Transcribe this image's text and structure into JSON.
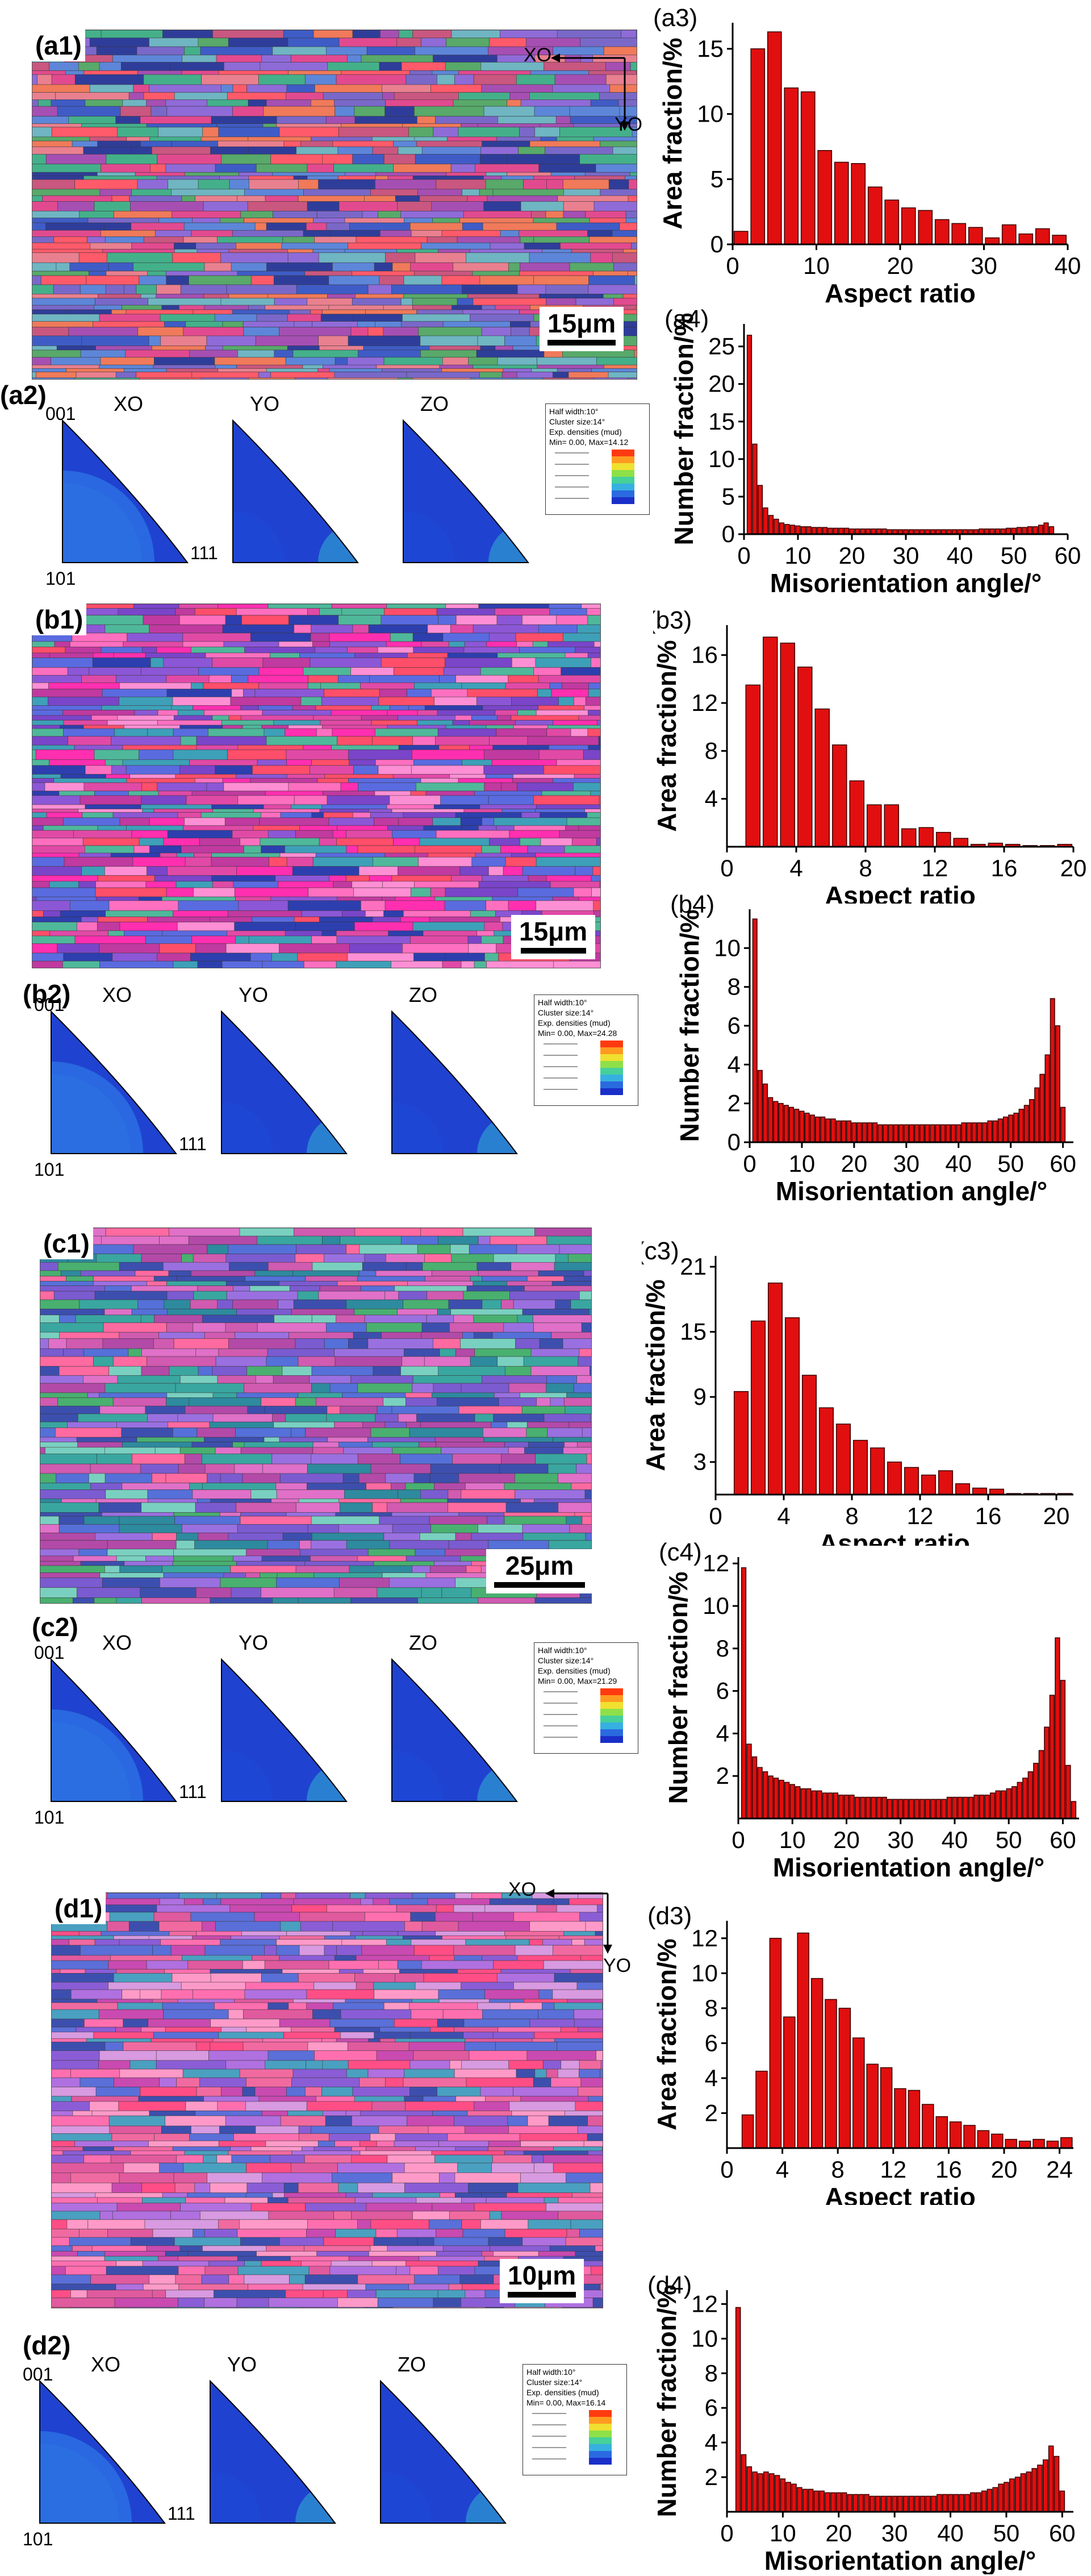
{
  "panels": {
    "a1": "(a1)",
    "a2": "(a2)",
    "b1": "(b1)",
    "b2": "(b2)",
    "c1": "(c1)",
    "c2": "(c2)",
    "d1": "(d1)",
    "d2": "(d2)"
  },
  "scalebars": {
    "a": "15μm",
    "b": "15μm",
    "c": "25μm",
    "d": "10μm"
  },
  "directions": {
    "xo": "XO",
    "yo": "YO",
    "zo": "ZO"
  },
  "poles": {
    "p001": "001",
    "p101": "101",
    "p111": "111"
  },
  "legends": {
    "a": {
      "l1": "Half width:10°",
      "l2": "Cluster size:14°",
      "l3": "Exp. densities (mud)",
      "l4": "Min= 0.00, Max=14.12"
    },
    "b": {
      "l1": "Half width:10°",
      "l2": "Cluster size:14°",
      "l3": "Exp. densities (mud)",
      "l4": "Min= 0.00, Max=24.28"
    },
    "c": {
      "l1": "Half width:10°",
      "l2": "Cluster size:14°",
      "l3": "Exp. densities (mud)",
      "l4": "Min= 0.00, Max=21.29"
    },
    "d": {
      "l1": "Half width:10°",
      "l2": "Cluster size:14°",
      "l3": "Exp. densities (mud)",
      "l4": "Min= 0.00, Max=16.14"
    }
  },
  "chart_data": [
    {
      "id": "a3",
      "panel": "(a3)",
      "type": "bar",
      "xlabel": "Aspect ratio",
      "ylabel": "Area fraction/%",
      "xlim": [
        0,
        40
      ],
      "ylim": [
        0,
        17
      ],
      "xticks": [
        0,
        10,
        20,
        30,
        40
      ],
      "yticks": [
        0,
        5,
        10,
        15
      ],
      "binwidth": 2,
      "x": [
        1,
        3,
        5,
        7,
        9,
        11,
        13,
        15,
        17,
        19,
        21,
        23,
        25,
        27,
        29,
        31,
        33,
        35,
        37,
        39
      ],
      "values": [
        1.0,
        15.0,
        16.3,
        12.0,
        11.7,
        7.2,
        6.3,
        6.2,
        4.4,
        3.4,
        2.8,
        2.6,
        1.9,
        1.6,
        1.3,
        0.5,
        1.5,
        0.8,
        1.2,
        0.7
      ]
    },
    {
      "id": "a4",
      "panel": "(a4)",
      "type": "bar",
      "xlabel": "Misorientation angle/°",
      "ylabel": "Number fraction/%",
      "xlim": [
        0,
        60
      ],
      "ylim": [
        0,
        28
      ],
      "xticks": [
        0,
        10,
        20,
        30,
        40,
        50,
        60
      ],
      "yticks": [
        0,
        5,
        10,
        15,
        20,
        25
      ],
      "binwidth": 1,
      "x": [
        1,
        2,
        3,
        4,
        5,
        6,
        7,
        8,
        9,
        10,
        11,
        12,
        13,
        14,
        15,
        16,
        17,
        18,
        19,
        20,
        21,
        22,
        23,
        24,
        25,
        26,
        27,
        28,
        29,
        30,
        31,
        32,
        33,
        34,
        35,
        36,
        37,
        38,
        39,
        40,
        41,
        42,
        43,
        44,
        45,
        46,
        47,
        48,
        49,
        50,
        51,
        52,
        53,
        54,
        55,
        56,
        57
      ],
      "values": [
        26.5,
        12.0,
        6.5,
        3.5,
        2.5,
        2.0,
        1.5,
        1.3,
        1.2,
        1.1,
        1.0,
        1.0,
        0.9,
        0.9,
        0.9,
        0.8,
        0.8,
        0.8,
        0.8,
        0.7,
        0.7,
        0.7,
        0.7,
        0.7,
        0.7,
        0.7,
        0.6,
        0.6,
        0.6,
        0.6,
        0.6,
        0.6,
        0.6,
        0.6,
        0.6,
        0.6,
        0.6,
        0.6,
        0.6,
        0.6,
        0.6,
        0.6,
        0.6,
        0.7,
        0.7,
        0.7,
        0.7,
        0.7,
        0.8,
        0.8,
        0.9,
        0.9,
        1.0,
        1.0,
        1.2,
        1.5,
        1.0
      ]
    },
    {
      "id": "b3",
      "panel": "(b3)",
      "type": "bar",
      "xlabel": "Aspect ratio",
      "ylabel": "Area fraction/%",
      "xlim": [
        0,
        20
      ],
      "ylim": [
        0,
        18.5
      ],
      "xticks": [
        0,
        4,
        8,
        12,
        16,
        20
      ],
      "yticks": [
        4,
        8,
        12,
        16
      ],
      "binwidth": 1,
      "x": [
        1.5,
        2.5,
        3.5,
        4.5,
        5.5,
        6.5,
        7.5,
        8.5,
        9.5,
        10.5,
        11.5,
        12.5,
        13.5,
        14.5,
        15.5,
        16.5,
        17.5,
        18.5,
        19.5
      ],
      "values": [
        13.5,
        17.5,
        17.0,
        15.0,
        11.5,
        8.5,
        5.5,
        3.5,
        3.5,
        1.5,
        1.6,
        1.2,
        0.7,
        0.2,
        0.3,
        0.2,
        0.1,
        0.1,
        0.2
      ]
    },
    {
      "id": "b4",
      "panel": "(b4)",
      "type": "bar",
      "xlabel": "Misorientation angle/°",
      "ylabel": "Number fraction/%",
      "xlim": [
        0,
        62
      ],
      "ylim": [
        0,
        12
      ],
      "xticks": [
        0,
        10,
        20,
        30,
        40,
        50,
        60
      ],
      "yticks": [
        0,
        2,
        4,
        6,
        8,
        10
      ],
      "binwidth": 1,
      "x": [
        1,
        2,
        3,
        4,
        5,
        6,
        7,
        8,
        9,
        10,
        11,
        12,
        13,
        14,
        15,
        16,
        17,
        18,
        19,
        20,
        21,
        22,
        23,
        24,
        25,
        26,
        27,
        28,
        29,
        30,
        31,
        32,
        33,
        34,
        35,
        36,
        37,
        38,
        39,
        40,
        41,
        42,
        43,
        44,
        45,
        46,
        47,
        48,
        49,
        50,
        51,
        52,
        53,
        54,
        55,
        56,
        57,
        58,
        59,
        60
      ],
      "values": [
        11.5,
        3.7,
        3.0,
        2.3,
        2.1,
        2.0,
        1.9,
        1.8,
        1.7,
        1.6,
        1.5,
        1.4,
        1.3,
        1.3,
        1.2,
        1.2,
        1.1,
        1.1,
        1.1,
        1.0,
        1.0,
        1.0,
        1.0,
        1.0,
        0.9,
        0.9,
        0.9,
        0.9,
        0.9,
        0.9,
        0.9,
        0.9,
        0.9,
        0.9,
        0.9,
        0.9,
        0.9,
        0.9,
        0.9,
        0.9,
        1.0,
        1.0,
        1.0,
        1.0,
        1.0,
        1.1,
        1.1,
        1.2,
        1.3,
        1.4,
        1.5,
        1.7,
        1.9,
        2.2,
        2.8,
        3.5,
        4.5,
        7.4,
        6.0,
        1.8
      ]
    },
    {
      "id": "c3",
      "panel": "(c3)",
      "type": "bar",
      "xlabel": "Aspect ratio",
      "ylabel": "Area fraction/%",
      "xlim": [
        0,
        21
      ],
      "ylim": [
        0,
        22
      ],
      "xticks": [
        0,
        4,
        8,
        12,
        16,
        20
      ],
      "yticks": [
        3,
        9,
        15,
        21
      ],
      "binwidth": 1,
      "x": [
        1.5,
        2.5,
        3.5,
        4.5,
        5.5,
        6.5,
        7.5,
        8.5,
        9.5,
        10.5,
        11.5,
        12.5,
        13.5,
        14.5,
        15.5,
        16.5,
        17.5,
        18.5,
        19.5,
        20.5
      ],
      "values": [
        9.5,
        16.0,
        19.5,
        16.3,
        11.0,
        8.0,
        6.5,
        5.0,
        4.3,
        3.0,
        2.5,
        1.8,
        2.2,
        1.0,
        0.6,
        0.5,
        0.1,
        0.1,
        0.1,
        0.1
      ]
    },
    {
      "id": "c4",
      "panel": "(c4)",
      "type": "bar",
      "xlabel": "Misorientation angle/°",
      "ylabel": "Number fraction/%",
      "xlim": [
        0,
        63
      ],
      "ylim": [
        0,
        12.3
      ],
      "xticks": [
        0,
        10,
        20,
        30,
        40,
        50,
        60
      ],
      "yticks": [
        2,
        4,
        6,
        8,
        10,
        12
      ],
      "binwidth": 1,
      "x": [
        1,
        2,
        3,
        4,
        5,
        6,
        7,
        8,
        9,
        10,
        11,
        12,
        13,
        14,
        15,
        16,
        17,
        18,
        19,
        20,
        21,
        22,
        23,
        24,
        25,
        26,
        27,
        28,
        29,
        30,
        31,
        32,
        33,
        34,
        35,
        36,
        37,
        38,
        39,
        40,
        41,
        42,
        43,
        44,
        45,
        46,
        47,
        48,
        49,
        50,
        51,
        52,
        53,
        54,
        55,
        56,
        57,
        58,
        59,
        60,
        61,
        62
      ],
      "values": [
        11.8,
        3.5,
        2.9,
        2.4,
        2.2,
        2.0,
        1.9,
        1.8,
        1.7,
        1.6,
        1.5,
        1.4,
        1.4,
        1.3,
        1.3,
        1.2,
        1.2,
        1.2,
        1.1,
        1.1,
        1.1,
        1.0,
        1.0,
        1.0,
        1.0,
        1.0,
        1.0,
        0.9,
        0.9,
        0.9,
        0.9,
        0.9,
        0.9,
        0.9,
        0.9,
        0.9,
        0.9,
        0.9,
        1.0,
        1.0,
        1.0,
        1.0,
        1.0,
        1.1,
        1.1,
        1.1,
        1.2,
        1.3,
        1.3,
        1.4,
        1.5,
        1.7,
        1.9,
        2.2,
        2.6,
        3.2,
        4.3,
        5.8,
        8.5,
        6.5,
        2.5,
        0.8
      ]
    },
    {
      "id": "d3",
      "panel": "(d3)",
      "type": "bar",
      "xlabel": "Aspect ratio",
      "ylabel": "Area fraction/%",
      "xlim": [
        0,
        25
      ],
      "ylim": [
        0,
        13
      ],
      "xticks": [
        0,
        4,
        8,
        12,
        16,
        20,
        24
      ],
      "yticks": [
        2,
        4,
        6,
        8,
        10,
        12
      ],
      "binwidth": 1,
      "x": [
        1.5,
        2.5,
        3.5,
        4.5,
        5.5,
        6.5,
        7.5,
        8.5,
        9.5,
        10.5,
        11.5,
        12.5,
        13.5,
        14.5,
        15.5,
        16.5,
        17.5,
        18.5,
        19.5,
        20.5,
        21.5,
        22.5,
        23.5,
        24.5
      ],
      "values": [
        1.9,
        4.4,
        12.0,
        7.5,
        12.3,
        9.7,
        8.5,
        8.0,
        6.3,
        4.8,
        4.6,
        3.4,
        3.3,
        2.5,
        1.8,
        1.5,
        1.3,
        1.0,
        0.8,
        0.5,
        0.4,
        0.5,
        0.4,
        0.6
      ]
    },
    {
      "id": "d4",
      "panel": "(d4)",
      "type": "bar",
      "xlabel": "Misorientation angle/°",
      "ylabel": "Number fraction/%",
      "xlim": [
        0,
        62
      ],
      "ylim": [
        0,
        12.8
      ],
      "xticks": [
        0,
        10,
        20,
        30,
        40,
        50,
        60
      ],
      "yticks": [
        2,
        4,
        6,
        8,
        10,
        12
      ],
      "binwidth": 1,
      "x": [
        2,
        3,
        4,
        5,
        6,
        7,
        8,
        9,
        10,
        11,
        12,
        13,
        14,
        15,
        16,
        17,
        18,
        19,
        20,
        21,
        22,
        23,
        24,
        25,
        26,
        27,
        28,
        29,
        30,
        31,
        32,
        33,
        34,
        35,
        36,
        37,
        38,
        39,
        40,
        41,
        42,
        43,
        44,
        45,
        46,
        47,
        48,
        49,
        50,
        51,
        52,
        53,
        54,
        55,
        56,
        57,
        58,
        59,
        60
      ],
      "values": [
        11.8,
        3.3,
        2.6,
        2.3,
        2.2,
        2.3,
        2.2,
        2.1,
        1.9,
        1.7,
        1.6,
        1.4,
        1.3,
        1.3,
        1.2,
        1.2,
        1.1,
        1.1,
        1.1,
        1.1,
        1.0,
        1.0,
        1.0,
        1.0,
        0.9,
        0.9,
        0.9,
        0.9,
        0.9,
        0.9,
        0.9,
        0.9,
        0.9,
        0.9,
        0.9,
        0.9,
        1.0,
        1.0,
        1.0,
        1.0,
        1.0,
        1.0,
        1.1,
        1.1,
        1.2,
        1.3,
        1.4,
        1.6,
        1.7,
        1.9,
        2.0,
        2.2,
        2.3,
        2.5,
        2.7,
        3.0,
        3.8,
        3.2,
        1.2
      ]
    }
  ]
}
